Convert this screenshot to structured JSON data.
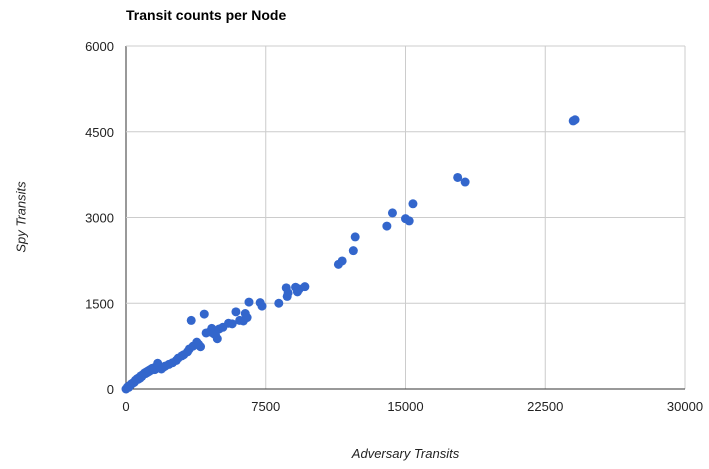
{
  "chart_data": {
    "type": "scatter",
    "title": "Transit counts per Node",
    "xlabel": "Adversary Transits",
    "ylabel": "Spy Transits",
    "xlim": [
      0,
      30000
    ],
    "ylim": [
      0,
      6000
    ],
    "x_ticks": [
      "0",
      "7500",
      "15000",
      "22500",
      "30000"
    ],
    "y_ticks": [
      "0",
      "1500",
      "3000",
      "4500",
      "6000"
    ],
    "grid": true,
    "point_color": "#3366cc",
    "points": [
      [
        0,
        0
      ],
      [
        60,
        20
      ],
      [
        100,
        40
      ],
      [
        150,
        30
      ],
      [
        200,
        60
      ],
      [
        250,
        70
      ],
      [
        300,
        90
      ],
      [
        350,
        100
      ],
      [
        400,
        110
      ],
      [
        450,
        120
      ],
      [
        500,
        150
      ],
      [
        550,
        160
      ],
      [
        600,
        180
      ],
      [
        650,
        170
      ],
      [
        700,
        200
      ],
      [
        750,
        190
      ],
      [
        800,
        230
      ],
      [
        850,
        220
      ],
      [
        900,
        250
      ],
      [
        950,
        260
      ],
      [
        1000,
        280
      ],
      [
        1050,
        270
      ],
      [
        1100,
        300
      ],
      [
        1150,
        290
      ],
      [
        1200,
        320
      ],
      [
        1250,
        310
      ],
      [
        1300,
        340
      ],
      [
        1350,
        330
      ],
      [
        1400,
        360
      ],
      [
        1450,
        350
      ],
      [
        1500,
        370
      ],
      [
        1550,
        340
      ],
      [
        1600,
        380
      ],
      [
        1700,
        450
      ],
      [
        1800,
        400
      ],
      [
        1900,
        350
      ],
      [
        2000,
        380
      ],
      [
        2100,
        400
      ],
      [
        2300,
        430
      ],
      [
        2500,
        460
      ],
      [
        2700,
        500
      ],
      [
        2800,
        540
      ],
      [
        3000,
        580
      ],
      [
        3100,
        600
      ],
      [
        3300,
        650
      ],
      [
        3400,
        700
      ],
      [
        3500,
        1200
      ],
      [
        3600,
        750
      ],
      [
        3800,
        820
      ],
      [
        3900,
        780
      ],
      [
        4000,
        740
      ],
      [
        4200,
        1310
      ],
      [
        4300,
        980
      ],
      [
        4500,
        1000
      ],
      [
        4600,
        1060
      ],
      [
        4700,
        970
      ],
      [
        4800,
        950
      ],
      [
        4900,
        880
      ],
      [
        5000,
        1050
      ],
      [
        5200,
        1080
      ],
      [
        5500,
        1150
      ],
      [
        5700,
        1140
      ],
      [
        5900,
        1350
      ],
      [
        6100,
        1200
      ],
      [
        6300,
        1190
      ],
      [
        6400,
        1320
      ],
      [
        6500,
        1250
      ],
      [
        6600,
        1520
      ],
      [
        7200,
        1510
      ],
      [
        7300,
        1450
      ],
      [
        8200,
        1500
      ],
      [
        8600,
        1770
      ],
      [
        8650,
        1620
      ],
      [
        8700,
        1680
      ],
      [
        9100,
        1780
      ],
      [
        9200,
        1700
      ],
      [
        9300,
        1750
      ],
      [
        9600,
        1790
      ],
      [
        11400,
        2180
      ],
      [
        11600,
        2240
      ],
      [
        12200,
        2420
      ],
      [
        12300,
        2660
      ],
      [
        14000,
        2850
      ],
      [
        14300,
        3080
      ],
      [
        15000,
        2980
      ],
      [
        15200,
        2940
      ],
      [
        15400,
        3240
      ],
      [
        17800,
        3700
      ],
      [
        18200,
        3620
      ],
      [
        24000,
        4690
      ],
      [
        24100,
        4710
      ]
    ]
  }
}
